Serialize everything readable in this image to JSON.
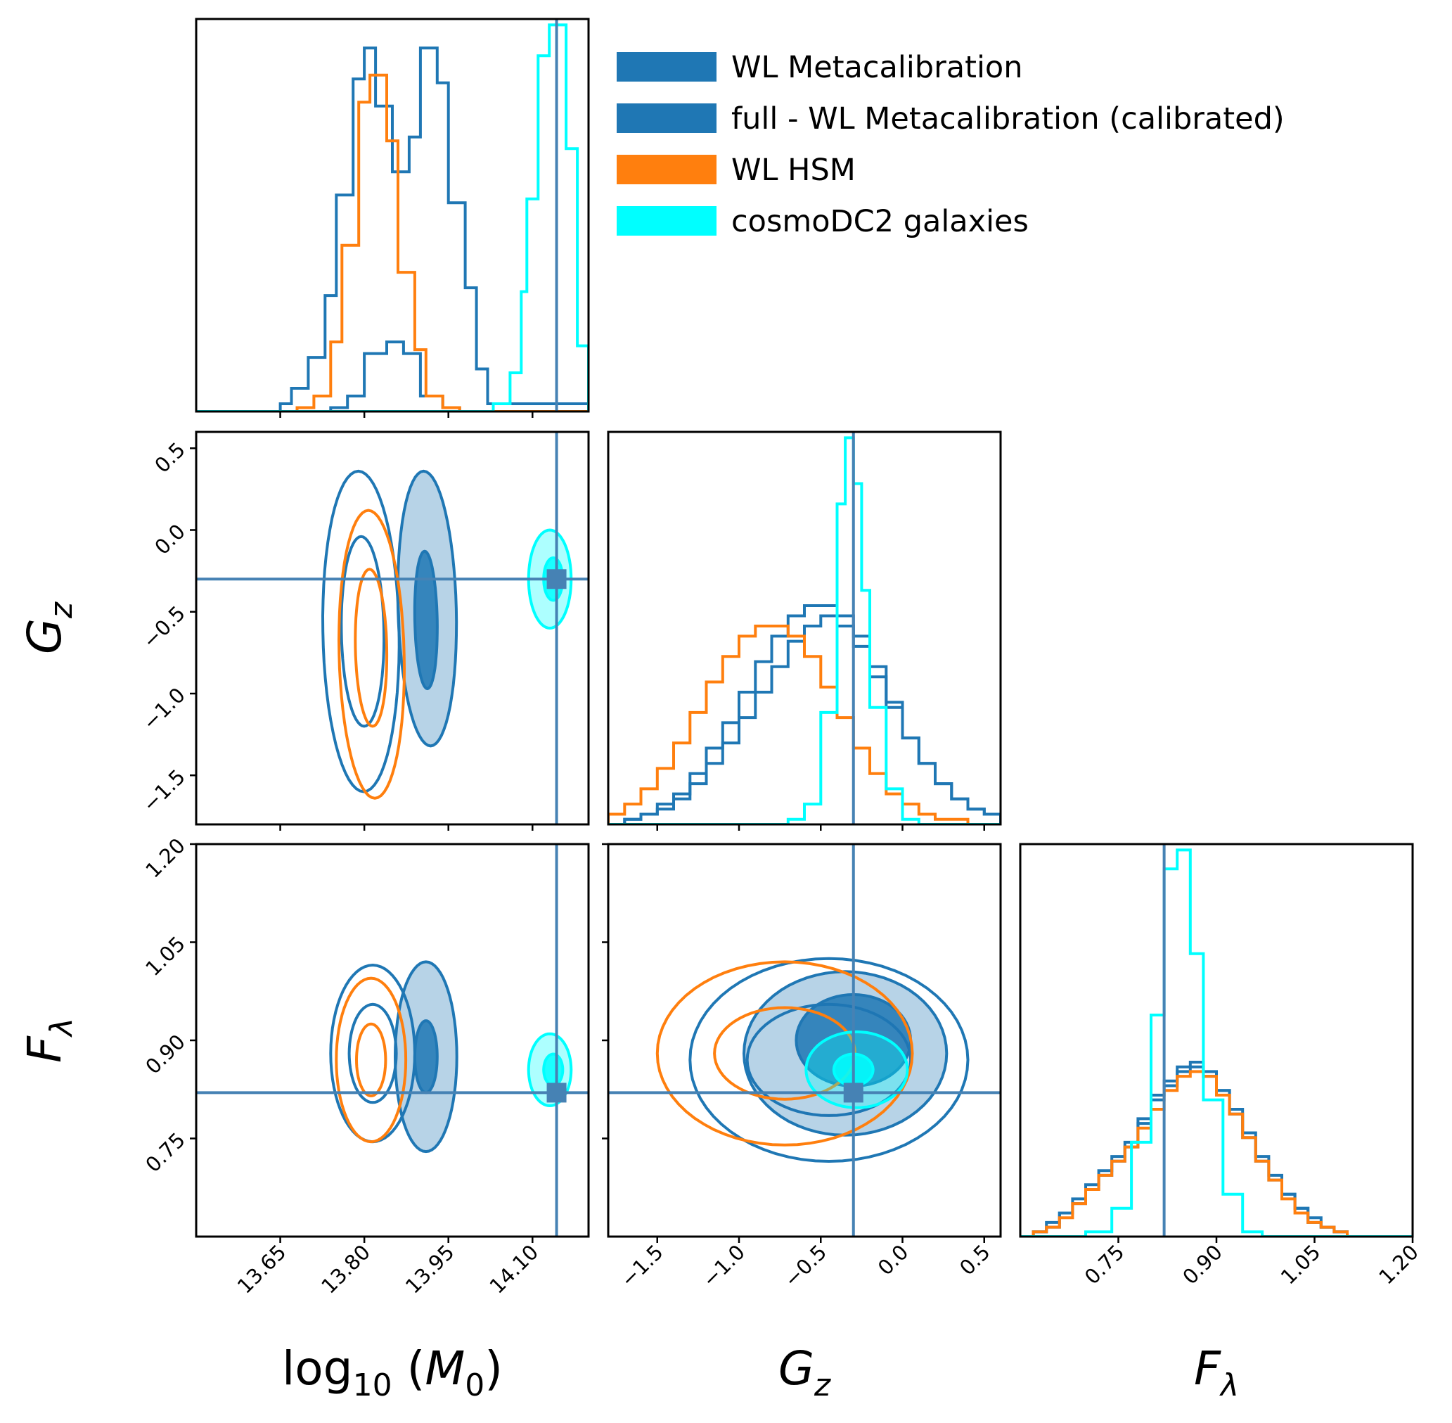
{
  "chart_data": {
    "type": "corner",
    "parameters": [
      {
        "id": "logM0",
        "label": "log10(M0)",
        "range": [
          13.5,
          14.2
        ],
        "ticks": [
          13.65,
          13.8,
          13.95,
          14.1
        ],
        "tick_labels": [
          "13.65",
          "13.80",
          "13.95",
          "14.10"
        ],
        "truth": 14.143
      },
      {
        "id": "Gz",
        "label": "Gz",
        "range": [
          -1.8,
          0.6
        ],
        "ticks": [
          -1.5,
          -1.0,
          -0.5,
          0.0,
          0.5
        ],
        "tick_labels": [
          "−1.5",
          "−1.0",
          "−0.5",
          "0.0",
          "0.5"
        ],
        "truth": -0.3
      },
      {
        "id": "Flambda",
        "label": "Fλ",
        "range": [
          0.6,
          1.2
        ],
        "ticks": [
          0.75,
          0.9,
          1.05,
          1.2
        ],
        "tick_labels": [
          "0.75",
          "0.90",
          "1.05",
          "1.20"
        ],
        "truth": 0.82
      }
    ],
    "axis_labels": {
      "logM0": {
        "base": "log",
        "sub": "10",
        "arg": "M",
        "arg_sub": "0"
      },
      "Gz": {
        "main": "G",
        "sub": "z"
      },
      "Flambda": {
        "main": "F",
        "sub": "λ"
      }
    },
    "truth_color": "#4682b4",
    "legend": {
      "placement": "top-right",
      "entries": [
        {
          "label": "WL Metacalibration",
          "color": "#1f77b4"
        },
        {
          "label": "full - WL Metacalibration (calibrated)",
          "color": "#1f77b4"
        },
        {
          "label": "WL HSM",
          "color": "#ff7f0e"
        },
        {
          "label": "cosmoDC2 galaxies",
          "color": "#00ffff"
        }
      ]
    },
    "series": [
      {
        "name": "WL Metacalibration",
        "color": "#1f77b4",
        "filled": false,
        "marginals": {
          "logM0": {
            "edges": [
              13.5,
              13.65,
              13.67,
              13.7,
              13.73,
              13.75,
              13.78,
              13.8,
              13.82,
              13.85,
              13.88,
              13.9,
              13.93,
              13.95,
              13.98,
              14.0,
              14.02,
              14.2
            ],
            "heights": [
              0.0,
              0.02,
              0.06,
              0.14,
              0.3,
              0.56,
              0.86,
              0.94,
              0.79,
              0.62,
              0.71,
              0.94,
              0.85,
              0.54,
              0.32,
              0.11,
              0.02
            ]
          },
          "Gz": {
            "edges": [
              -1.8,
              -1.7,
              -1.6,
              -1.5,
              -1.4,
              -1.3,
              -1.2,
              -1.1,
              -1.0,
              -0.9,
              -0.8,
              -0.7,
              -0.6,
              -0.5,
              -0.4,
              -0.3,
              -0.2,
              -0.1,
              0.0,
              0.1,
              0.2,
              0.3,
              0.4,
              0.5,
              0.6
            ],
            "heights": [
              0.0,
              0.01,
              0.02,
              0.04,
              0.06,
              0.1,
              0.15,
              0.2,
              0.26,
              0.32,
              0.37,
              0.41,
              0.43,
              0.43,
              0.41,
              0.37,
              0.31,
              0.24,
              0.17,
              0.12,
              0.08,
              0.05,
              0.03,
              0.02
            ]
          },
          "Flambda": {
            "edges": [
              0.6,
              0.62,
              0.64,
              0.66,
              0.68,
              0.7,
              0.72,
              0.74,
              0.76,
              0.78,
              0.8,
              0.82,
              0.84,
              0.86,
              0.88,
              0.9,
              0.92,
              0.94,
              0.96,
              0.98,
              1.0,
              1.02,
              1.04,
              1.06,
              1.08,
              1.1,
              1.2
            ],
            "heights": [
              0.0,
              0.01,
              0.03,
              0.05,
              0.08,
              0.11,
              0.14,
              0.17,
              0.2,
              0.25,
              0.3,
              0.33,
              0.36,
              0.37,
              0.35,
              0.31,
              0.27,
              0.22,
              0.17,
              0.13,
              0.09,
              0.06,
              0.04,
              0.02,
              0.01,
              0.0
            ]
          }
        },
        "contours": {
          "logM0_Gz": [
            {
              "cx": 13.794,
              "cy": -0.62,
              "rx": 0.068,
              "ry": 0.98,
              "rot": -0.07
            },
            {
              "cx": 13.797,
              "cy": -0.62,
              "rx": 0.038,
              "ry": 0.58,
              "rot": -0.07
            }
          ],
          "logM0_Flambda": [
            {
              "cx": 13.815,
              "cy": 0.88,
              "rx": 0.075,
              "ry": 0.135,
              "rot": 0
            },
            {
              "cx": 13.815,
              "cy": 0.88,
              "rx": 0.042,
              "ry": 0.075,
              "rot": 0
            }
          ],
          "Gz_Flambda": [
            {
              "cx": -0.45,
              "cy": 0.87,
              "rx": 0.85,
              "ry": 0.155,
              "rot": 0
            },
            {
              "cx": -0.45,
              "cy": 0.87,
              "rx": 0.5,
              "ry": 0.085,
              "rot": 0
            }
          ]
        }
      },
      {
        "name": "full - WL Metacalibration (calibrated)",
        "color": "#1f77b4",
        "filled": true,
        "marginals": {
          "logM0": {
            "edges": [
              13.5,
              13.74,
              13.77,
              13.8,
              13.84,
              13.87,
              13.9,
              13.94,
              13.97,
              14.2
            ],
            "heights": [
              0.0,
              0.01,
              0.04,
              0.15,
              0.18,
              0.15,
              0.04,
              0.01,
              0.0
            ]
          },
          "Gz": {
            "edges": [
              -1.8,
              -1.7,
              -1.6,
              -1.5,
              -1.4,
              -1.3,
              -1.2,
              -1.1,
              -1.0,
              -0.9,
              -0.8,
              -0.7,
              -0.6,
              -0.5,
              -0.4,
              -0.3,
              -0.2,
              -0.1,
              0.0,
              0.1,
              0.2,
              0.3,
              0.4,
              0.5,
              0.6
            ],
            "heights": [
              0.0,
              0.01,
              0.02,
              0.03,
              0.05,
              0.08,
              0.12,
              0.16,
              0.21,
              0.26,
              0.31,
              0.36,
              0.39,
              0.41,
              0.39,
              0.35,
              0.29,
              0.23,
              0.17,
              0.12,
              0.08,
              0.05,
              0.03,
              0.02
            ]
          },
          "Flambda": {
            "edges": [
              0.6,
              0.62,
              0.64,
              0.66,
              0.68,
              0.7,
              0.72,
              0.74,
              0.76,
              0.78,
              0.8,
              0.82,
              0.84,
              0.86,
              0.88,
              0.9,
              0.92,
              0.94,
              0.96,
              0.98,
              1.0,
              1.02,
              1.04,
              1.06,
              1.08,
              1.1,
              1.2
            ],
            "heights": [
              0.0,
              0.01,
              0.02,
              0.05,
              0.07,
              0.1,
              0.13,
              0.16,
              0.19,
              0.24,
              0.29,
              0.32,
              0.35,
              0.36,
              0.34,
              0.31,
              0.26,
              0.21,
              0.16,
              0.12,
              0.09,
              0.06,
              0.03,
              0.02,
              0.01,
              0.0
            ]
          }
        },
        "contours": {
          "logM0_Gz": [
            {
              "cx": 13.912,
              "cy": -0.48,
              "rx": 0.052,
              "ry": 0.84,
              "rot": -0.12
            },
            {
              "cx": 13.91,
              "cy": -0.55,
              "rx": 0.02,
              "ry": 0.42,
              "rot": -0.12
            }
          ],
          "logM0_Flambda": [
            {
              "cx": 13.91,
              "cy": 0.875,
              "rx": 0.055,
              "ry": 0.145,
              "rot": 0
            },
            {
              "cx": 13.91,
              "cy": 0.875,
              "rx": 0.02,
              "ry": 0.055,
              "rot": 0
            }
          ],
          "Gz_Flambda": [
            {
              "cx": -0.35,
              "cy": 0.88,
              "rx": 0.62,
              "ry": 0.125,
              "rot": 0
            },
            {
              "cx": -0.3,
              "cy": 0.9,
              "rx": 0.35,
              "ry": 0.07,
              "rot": 0
            }
          ]
        }
      },
      {
        "name": "WL HSM",
        "color": "#ff7f0e",
        "filled": false,
        "marginals": {
          "logM0": {
            "edges": [
              13.5,
              13.68,
              13.71,
              13.74,
              13.76,
              13.79,
              13.81,
              13.84,
              13.86,
              13.89,
              13.91,
              13.94,
              13.97,
              14.2
            ],
            "heights": [
              0.0,
              0.01,
              0.04,
              0.18,
              0.43,
              0.8,
              0.87,
              0.7,
              0.36,
              0.16,
              0.04,
              0.01,
              0.0
            ]
          },
          "Gz": {
            "edges": [
              -1.8,
              -1.7,
              -1.6,
              -1.5,
              -1.4,
              -1.3,
              -1.2,
              -1.1,
              -1.0,
              -0.9,
              -0.8,
              -0.7,
              -0.6,
              -0.5,
              -0.4,
              -0.3,
              -0.2,
              -0.1,
              0.0,
              0.1,
              0.2,
              0.3,
              0.4,
              0.5,
              0.6
            ],
            "heights": [
              0.02,
              0.04,
              0.07,
              0.11,
              0.16,
              0.22,
              0.28,
              0.33,
              0.37,
              0.39,
              0.39,
              0.37,
              0.33,
              0.27,
              0.21,
              0.15,
              0.1,
              0.06,
              0.04,
              0.02,
              0.01,
              0.01,
              0.0,
              0.0
            ]
          },
          "Flambda": {
            "edges": [
              0.6,
              0.62,
              0.64,
              0.66,
              0.68,
              0.7,
              0.72,
              0.74,
              0.76,
              0.78,
              0.8,
              0.82,
              0.84,
              0.86,
              0.88,
              0.9,
              0.92,
              0.94,
              0.96,
              0.98,
              1.0,
              1.02,
              1.04,
              1.06,
              1.08,
              1.1,
              1.2
            ],
            "heights": [
              0.0,
              0.01,
              0.02,
              0.04,
              0.07,
              0.1,
              0.13,
              0.16,
              0.19,
              0.23,
              0.27,
              0.31,
              0.34,
              0.35,
              0.34,
              0.3,
              0.26,
              0.21,
              0.16,
              0.12,
              0.08,
              0.05,
              0.03,
              0.02,
              0.01,
              0.0
            ]
          }
        },
        "contours": {
          "logM0_Gz": [
            {
              "cx": 13.813,
              "cy": -0.76,
              "rx": 0.058,
              "ry": 0.88,
              "rot": -0.1
            },
            {
              "cx": 13.812,
              "cy": -0.72,
              "rx": 0.028,
              "ry": 0.48,
              "rot": -0.1
            }
          ],
          "logM0_Flambda": [
            {
              "cx": 13.812,
              "cy": 0.87,
              "rx": 0.062,
              "ry": 0.125,
              "rot": 0
            },
            {
              "cx": 13.812,
              "cy": 0.87,
              "rx": 0.026,
              "ry": 0.055,
              "rot": 0
            }
          ],
          "Gz_Flambda": [
            {
              "cx": -0.72,
              "cy": 0.88,
              "rx": 0.78,
              "ry": 0.14,
              "rot": 0
            },
            {
              "cx": -0.72,
              "cy": 0.88,
              "rx": 0.43,
              "ry": 0.07,
              "rot": 0
            }
          ]
        }
      },
      {
        "name": "cosmoDC2 galaxies",
        "color": "#00ffff",
        "filled": true,
        "marginals": {
          "logM0": {
            "edges": [
              13.5,
              14.03,
              14.06,
              14.08,
              14.09,
              14.11,
              14.13,
              14.16,
              14.18,
              14.2
            ],
            "heights": [
              0.0,
              0.02,
              0.1,
              0.31,
              0.55,
              0.92,
              1.0,
              0.68,
              0.17
            ]
          },
          "Gz": {
            "edges": [
              -1.8,
              -0.7,
              -0.6,
              -0.5,
              -0.4,
              -0.35,
              -0.3,
              -0.25,
              -0.2,
              -0.1,
              0.0,
              0.1,
              0.6
            ],
            "heights": [
              0.0,
              0.01,
              0.04,
              0.22,
              0.63,
              0.76,
              0.67,
              0.46,
              0.23,
              0.07,
              0.01,
              0.0
            ]
          },
          "Flambda": {
            "edges": [
              0.6,
              0.7,
              0.74,
              0.77,
              0.8,
              0.82,
              0.84,
              0.86,
              0.88,
              0.91,
              0.94,
              0.97,
              1.2
            ],
            "heights": [
              0.0,
              0.01,
              0.06,
              0.2,
              0.47,
              0.78,
              0.82,
              0.6,
              0.29,
              0.09,
              0.01,
              0.0
            ]
          }
        },
        "contours": {
          "logM0_Gz": [
            {
              "cx": 14.131,
              "cy": -0.3,
              "rx": 0.038,
              "ry": 0.3,
              "rot": 0
            },
            {
              "cx": 14.137,
              "cy": -0.3,
              "rx": 0.017,
              "ry": 0.13,
              "rot": 0
            }
          ],
          "logM0_Flambda": [
            {
              "cx": 14.131,
              "cy": 0.855,
              "rx": 0.038,
              "ry": 0.055,
              "rot": 0
            },
            {
              "cx": 14.137,
              "cy": 0.855,
              "rx": 0.017,
              "ry": 0.024,
              "rot": 0
            }
          ],
          "Gz_Flambda": [
            {
              "cx": -0.28,
              "cy": 0.855,
              "rx": 0.31,
              "ry": 0.058,
              "rot": 0
            },
            {
              "cx": -0.3,
              "cy": 0.855,
              "rx": 0.12,
              "ry": 0.024,
              "rot": 0
            }
          ]
        }
      }
    ]
  }
}
